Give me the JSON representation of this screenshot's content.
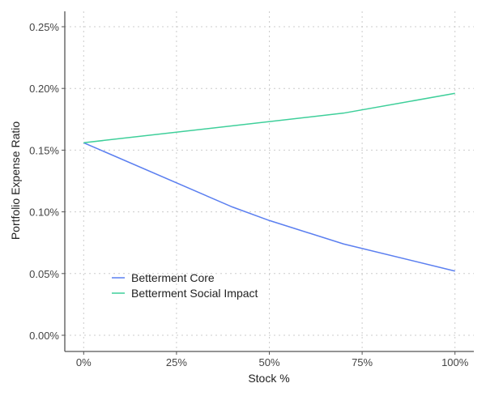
{
  "chart_data": {
    "type": "line",
    "xlabel": "Stock %",
    "ylabel": "Portfolio Expense Ratio",
    "xlim": [
      0,
      100
    ],
    "ylim": [
      0,
      0.25
    ],
    "x_ticks": [
      0,
      25,
      50,
      75,
      100
    ],
    "x_tick_labels": [
      "0%",
      "25%",
      "50%",
      "75%",
      "100%"
    ],
    "y_ticks": [
      0,
      0.05,
      0.1,
      0.15,
      0.2,
      0.25
    ],
    "y_tick_labels": [
      "0.00%",
      "0.05%",
      "0.10%",
      "0.15%",
      "0.20%",
      "0.25%"
    ],
    "grid": true,
    "legend_position": "bottom-left",
    "series": [
      {
        "name": "Betterment Core",
        "color": "#5b7ff0",
        "x": [
          0,
          40,
          50,
          70,
          100
        ],
        "y": [
          0.156,
          0.104,
          0.093,
          0.074,
          0.052
        ]
      },
      {
        "name": "Betterment Social Impact",
        "color": "#3ecf9a",
        "x": [
          0,
          70,
          100
        ],
        "y": [
          0.156,
          0.18,
          0.196
        ]
      }
    ]
  }
}
